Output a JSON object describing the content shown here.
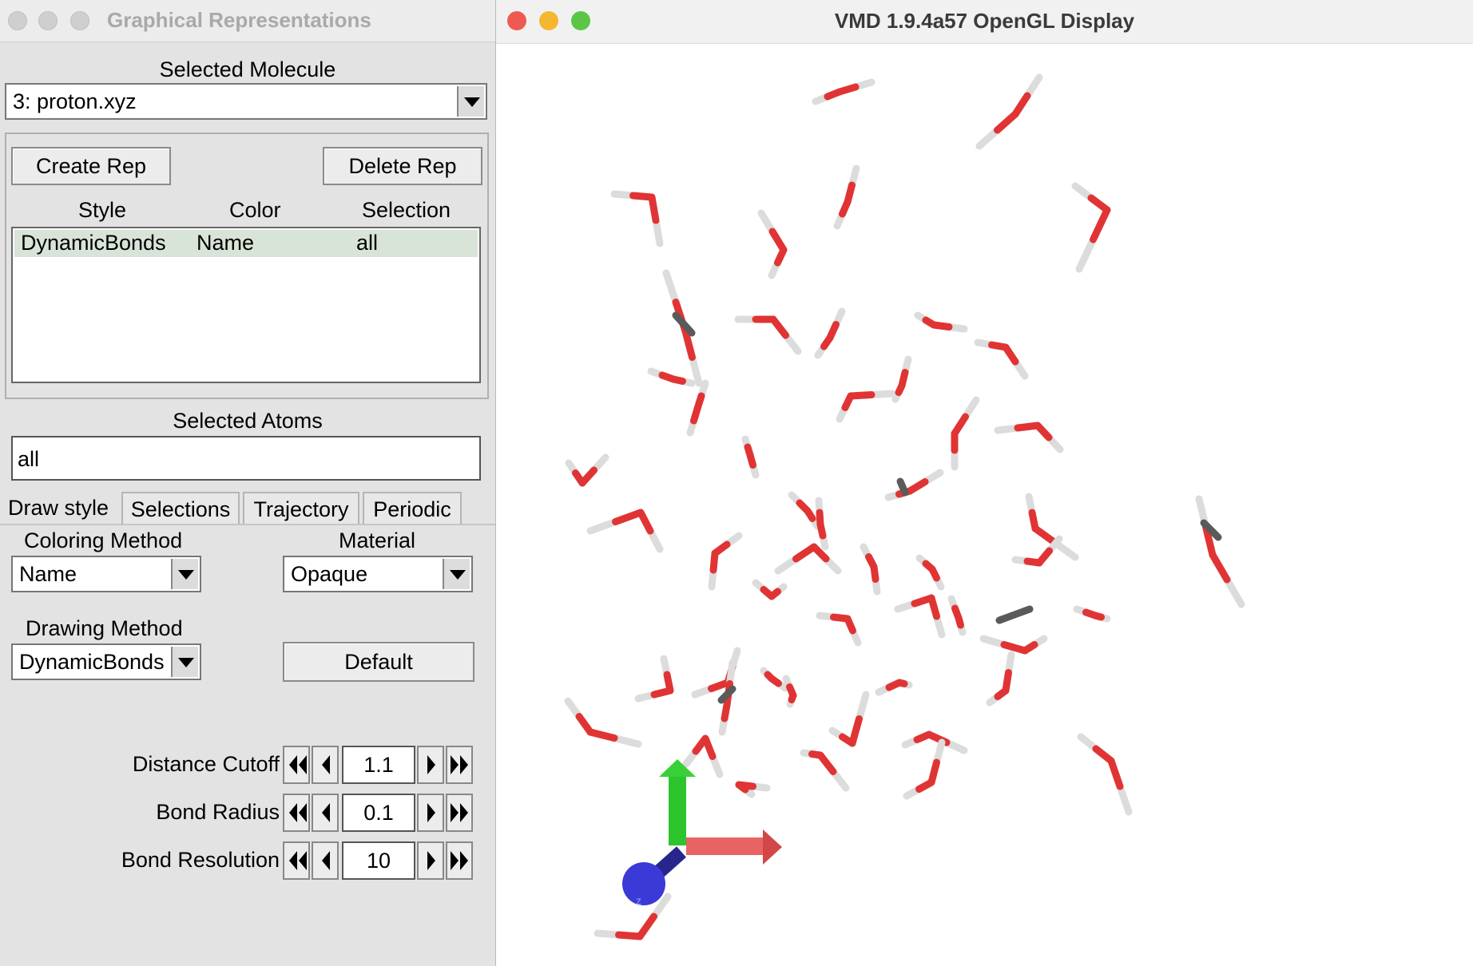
{
  "rep_window": {
    "title": "Graphical Representations",
    "selected_molecule_label": "Selected Molecule",
    "molecule_value": "3: proton.xyz",
    "create_rep": "Create Rep",
    "delete_rep": "Delete Rep",
    "columns": {
      "style": "Style",
      "color": "Color",
      "selection": "Selection"
    },
    "reps": [
      {
        "style": "DynamicBonds",
        "color": "Name",
        "selection": "all"
      }
    ],
    "selected_atoms_label": "Selected Atoms",
    "selected_atoms_value": "all",
    "tabs": [
      "Draw style",
      "Selections",
      "Trajectory",
      "Periodic"
    ],
    "coloring_method_label": "Coloring Method",
    "coloring_method_value": "Name",
    "material_label": "Material",
    "material_value": "Opaque",
    "drawing_method_label": "Drawing Method",
    "drawing_method_value": "DynamicBonds",
    "default_button": "Default",
    "params": [
      {
        "label": "Distance Cutoff",
        "value": "1.1"
      },
      {
        "label": "Bond Radius",
        "value": "0.1"
      },
      {
        "label": "Bond Resolution",
        "value": "10"
      }
    ]
  },
  "display_window": {
    "title": "VMD 1.9.4a57 OpenGL Display",
    "axis_z_label": "z"
  },
  "colors": {
    "oxygen": "#e03434",
    "hydrogen": "#dcdcdc",
    "carbon_like": "#5a5a5a",
    "close": "#ee5a52",
    "minimize": "#f5b731",
    "zoom": "#5bc645",
    "selected_row": "#d8e4d8",
    "axis_x": "#e86464",
    "axis_y": "#2ec42e",
    "axis_z": "#3434cc"
  }
}
